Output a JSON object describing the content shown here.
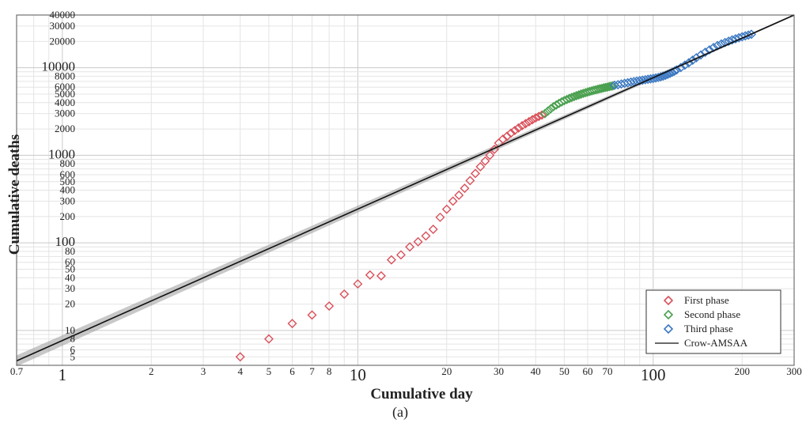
{
  "chart_data": {
    "type": "scatter",
    "xscale": "log",
    "yscale": "log",
    "xlim": [
      0.7,
      300
    ],
    "ylim": [
      4,
      40000
    ],
    "grid": true,
    "xlabel": "Cumulative day",
    "ylabel": "Cumulative deaths",
    "caption": "(a)",
    "legend_position": "bottom-right",
    "x_tick_labels": [
      {
        "value": 0.7,
        "label": "0.7",
        "major": false
      },
      {
        "value": 1,
        "label": "1",
        "major": true
      },
      {
        "value": 2,
        "label": "2",
        "major": false
      },
      {
        "value": 3,
        "label": "3",
        "major": false
      },
      {
        "value": 4,
        "label": "4",
        "major": false
      },
      {
        "value": 5,
        "label": "5",
        "major": false
      },
      {
        "value": 6,
        "label": "6",
        "major": false
      },
      {
        "value": 7,
        "label": "7",
        "major": false
      },
      {
        "value": 8,
        "label": "8",
        "major": false
      },
      {
        "value": 10,
        "label": "10",
        "major": true
      },
      {
        "value": 20,
        "label": "20",
        "major": false
      },
      {
        "value": 30,
        "label": "30",
        "major": false
      },
      {
        "value": 40,
        "label": "40",
        "major": false
      },
      {
        "value": 50,
        "label": "50",
        "major": false
      },
      {
        "value": 60,
        "label": "60",
        "major": false
      },
      {
        "value": 70,
        "label": "70",
        "major": false
      },
      {
        "value": 100,
        "label": "100",
        "major": true
      },
      {
        "value": 200,
        "label": "200",
        "major": false
      },
      {
        "value": 300,
        "label": "300",
        "major": false
      }
    ],
    "y_tick_labels": [
      {
        "value": 5,
        "label": "5",
        "major": false
      },
      {
        "value": 6,
        "label": "6",
        "major": false
      },
      {
        "value": 8,
        "label": "8",
        "major": false
      },
      {
        "value": 10,
        "label": "10",
        "major": false
      },
      {
        "value": 20,
        "label": "20",
        "major": false
      },
      {
        "value": 30,
        "label": "30",
        "major": false
      },
      {
        "value": 40,
        "label": "40",
        "major": false
      },
      {
        "value": 50,
        "label": "50",
        "major": false
      },
      {
        "value": 60,
        "label": "60",
        "major": false
      },
      {
        "value": 80,
        "label": "80",
        "major": false
      },
      {
        "value": 100,
        "label": "100",
        "major": true
      },
      {
        "value": 200,
        "label": "200",
        "major": false
      },
      {
        "value": 300,
        "label": "300",
        "major": false
      },
      {
        "value": 400,
        "label": "400",
        "major": false
      },
      {
        "value": 500,
        "label": "500",
        "major": false
      },
      {
        "value": 600,
        "label": "600",
        "major": false
      },
      {
        "value": 800,
        "label": "800",
        "major": false
      },
      {
        "value": 1000,
        "label": "1000",
        "major": true
      },
      {
        "value": 2000,
        "label": "2000",
        "major": false
      },
      {
        "value": 3000,
        "label": "3000",
        "major": false
      },
      {
        "value": 4000,
        "label": "4000",
        "major": false
      },
      {
        "value": 5000,
        "label": "5000",
        "major": false
      },
      {
        "value": 6000,
        "label": "6000",
        "major": false
      },
      {
        "value": 8000,
        "label": "8000",
        "major": false
      },
      {
        "value": 10000,
        "label": "10000",
        "major": true
      },
      {
        "value": 20000,
        "label": "20000",
        "major": false
      },
      {
        "value": 30000,
        "label": "30000",
        "major": false
      },
      {
        "value": 40000,
        "label": "40000",
        "major": false
      }
    ],
    "series": [
      {
        "name": "First phase",
        "color": "#d9505a",
        "marker": "diamond-open",
        "x": [
          4,
          5,
          6,
          7,
          8,
          9,
          10,
          11,
          12,
          13,
          14,
          15,
          16,
          17,
          18,
          19,
          20,
          21,
          22,
          23,
          24,
          25,
          26,
          27,
          28,
          29,
          30,
          31,
          32,
          33,
          34,
          35,
          36,
          37,
          38,
          39,
          40,
          41,
          42
        ],
        "y": [
          5,
          8,
          12,
          15,
          19,
          26,
          34,
          43,
          42,
          64,
          73,
          90,
          103,
          120,
          143,
          196,
          242,
          300,
          350,
          420,
          515,
          620,
          740,
          860,
          1000,
          1170,
          1380,
          1530,
          1650,
          1790,
          1920,
          2050,
          2180,
          2300,
          2420,
          2550,
          2670,
          2780,
          2880
        ]
      },
      {
        "name": "Second phase",
        "color": "#4aa04f",
        "marker": "diamond-open",
        "x": [
          43,
          44,
          45,
          46,
          47,
          48,
          49,
          50,
          51,
          52,
          53,
          54,
          55,
          56,
          57,
          58,
          59,
          60,
          61,
          62,
          63,
          64,
          65,
          66,
          67,
          68,
          69,
          70,
          71,
          72,
          73
        ],
        "y": [
          3000,
          3200,
          3400,
          3600,
          3760,
          3920,
          4070,
          4210,
          4340,
          4460,
          4580,
          4690,
          4800,
          4900,
          5000,
          5100,
          5190,
          5280,
          5370,
          5450,
          5530,
          5600,
          5680,
          5750,
          5820,
          5890,
          5960,
          6020,
          6090,
          6150,
          6210
        ]
      },
      {
        "name": "Third phase",
        "color": "#3b78c2",
        "marker": "diamond-open",
        "x": [
          74,
          76,
          78,
          80,
          82,
          84,
          86,
          88,
          90,
          92,
          94,
          96,
          98,
          100,
          102,
          104,
          106,
          108,
          110,
          112,
          114,
          116,
          118,
          120,
          124,
          128,
          132,
          136,
          140,
          145,
          150,
          155,
          160,
          165,
          170,
          175,
          180,
          185,
          190,
          195,
          200,
          205,
          210,
          215
        ],
        "y": [
          6300,
          6400,
          6520,
          6640,
          6750,
          6860,
          6950,
          7040,
          7130,
          7220,
          7300,
          7380,
          7460,
          7540,
          7640,
          7750,
          7880,
          8030,
          8200,
          8400,
          8620,
          8870,
          9140,
          9430,
          10050,
          10700,
          11400,
          12200,
          13000,
          14000,
          15000,
          16000,
          17000,
          17900,
          18700,
          19400,
          20100,
          20800,
          21400,
          22000,
          22600,
          23100,
          23600,
          24100
        ]
      },
      {
        "name": "Crow-AMSAA",
        "color": "#111111",
        "type": "line",
        "x": [
          0.7,
          300
        ],
        "y": [
          4.5,
          40000
        ]
      }
    ]
  }
}
